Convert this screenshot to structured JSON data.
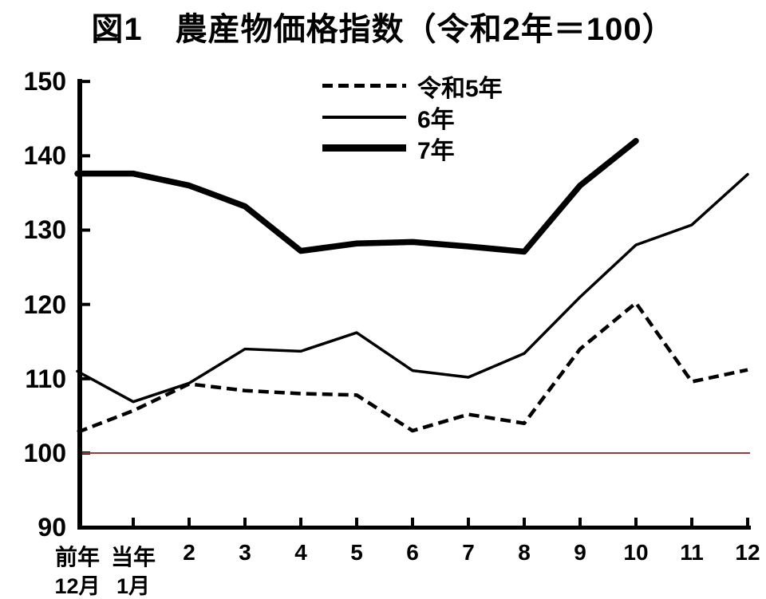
{
  "title": "図1　農産物価格指数（令和2年＝100）",
  "colors": {
    "line": "#000000",
    "baseline": "#9a3a3a",
    "background": "#ffffff",
    "text": "#000000"
  },
  "chart_data": {
    "type": "line",
    "title": "図1　農産物価格指数（令和2年＝100）",
    "index_base_note": "令和2年＝100",
    "categories": [
      "前年12月",
      "当年1月",
      "2",
      "3",
      "4",
      "5",
      "6",
      "7",
      "8",
      "9",
      "10",
      "11",
      "12"
    ],
    "x_labels_line1": [
      "前年",
      "当年",
      "2",
      "3",
      "4",
      "5",
      "6",
      "7",
      "8",
      "9",
      "10",
      "11",
      "12"
    ],
    "x_labels_line2": [
      "12月",
      "1月"
    ],
    "y_ticks": [
      150,
      140,
      130,
      120,
      110,
      100,
      90
    ],
    "ylim": [
      90,
      150
    ],
    "grid": false,
    "legend_position": "top-center",
    "baseline": {
      "value": 100,
      "color": "#9a3a3a"
    },
    "series": [
      {
        "name": "令和5年",
        "line_style": "dashed",
        "values": [
          102.8,
          105.7,
          109.3,
          108.4,
          108,
          107.8,
          103,
          105.2,
          104,
          114,
          120.2,
          109.6,
          111.2
        ]
      },
      {
        "name": "6年",
        "line_style": "thin-solid",
        "values": [
          111,
          106.9,
          109.4,
          114,
          113.7,
          116.2,
          111.1,
          110.2,
          113.4,
          121,
          128,
          130.7,
          137.5
        ]
      },
      {
        "name": "7年",
        "line_style": "thick-solid",
        "values": [
          137.6,
          137.6,
          136,
          133.2,
          127.2,
          128.2,
          128.4,
          127.8,
          127.1,
          136,
          142
        ]
      }
    ]
  }
}
